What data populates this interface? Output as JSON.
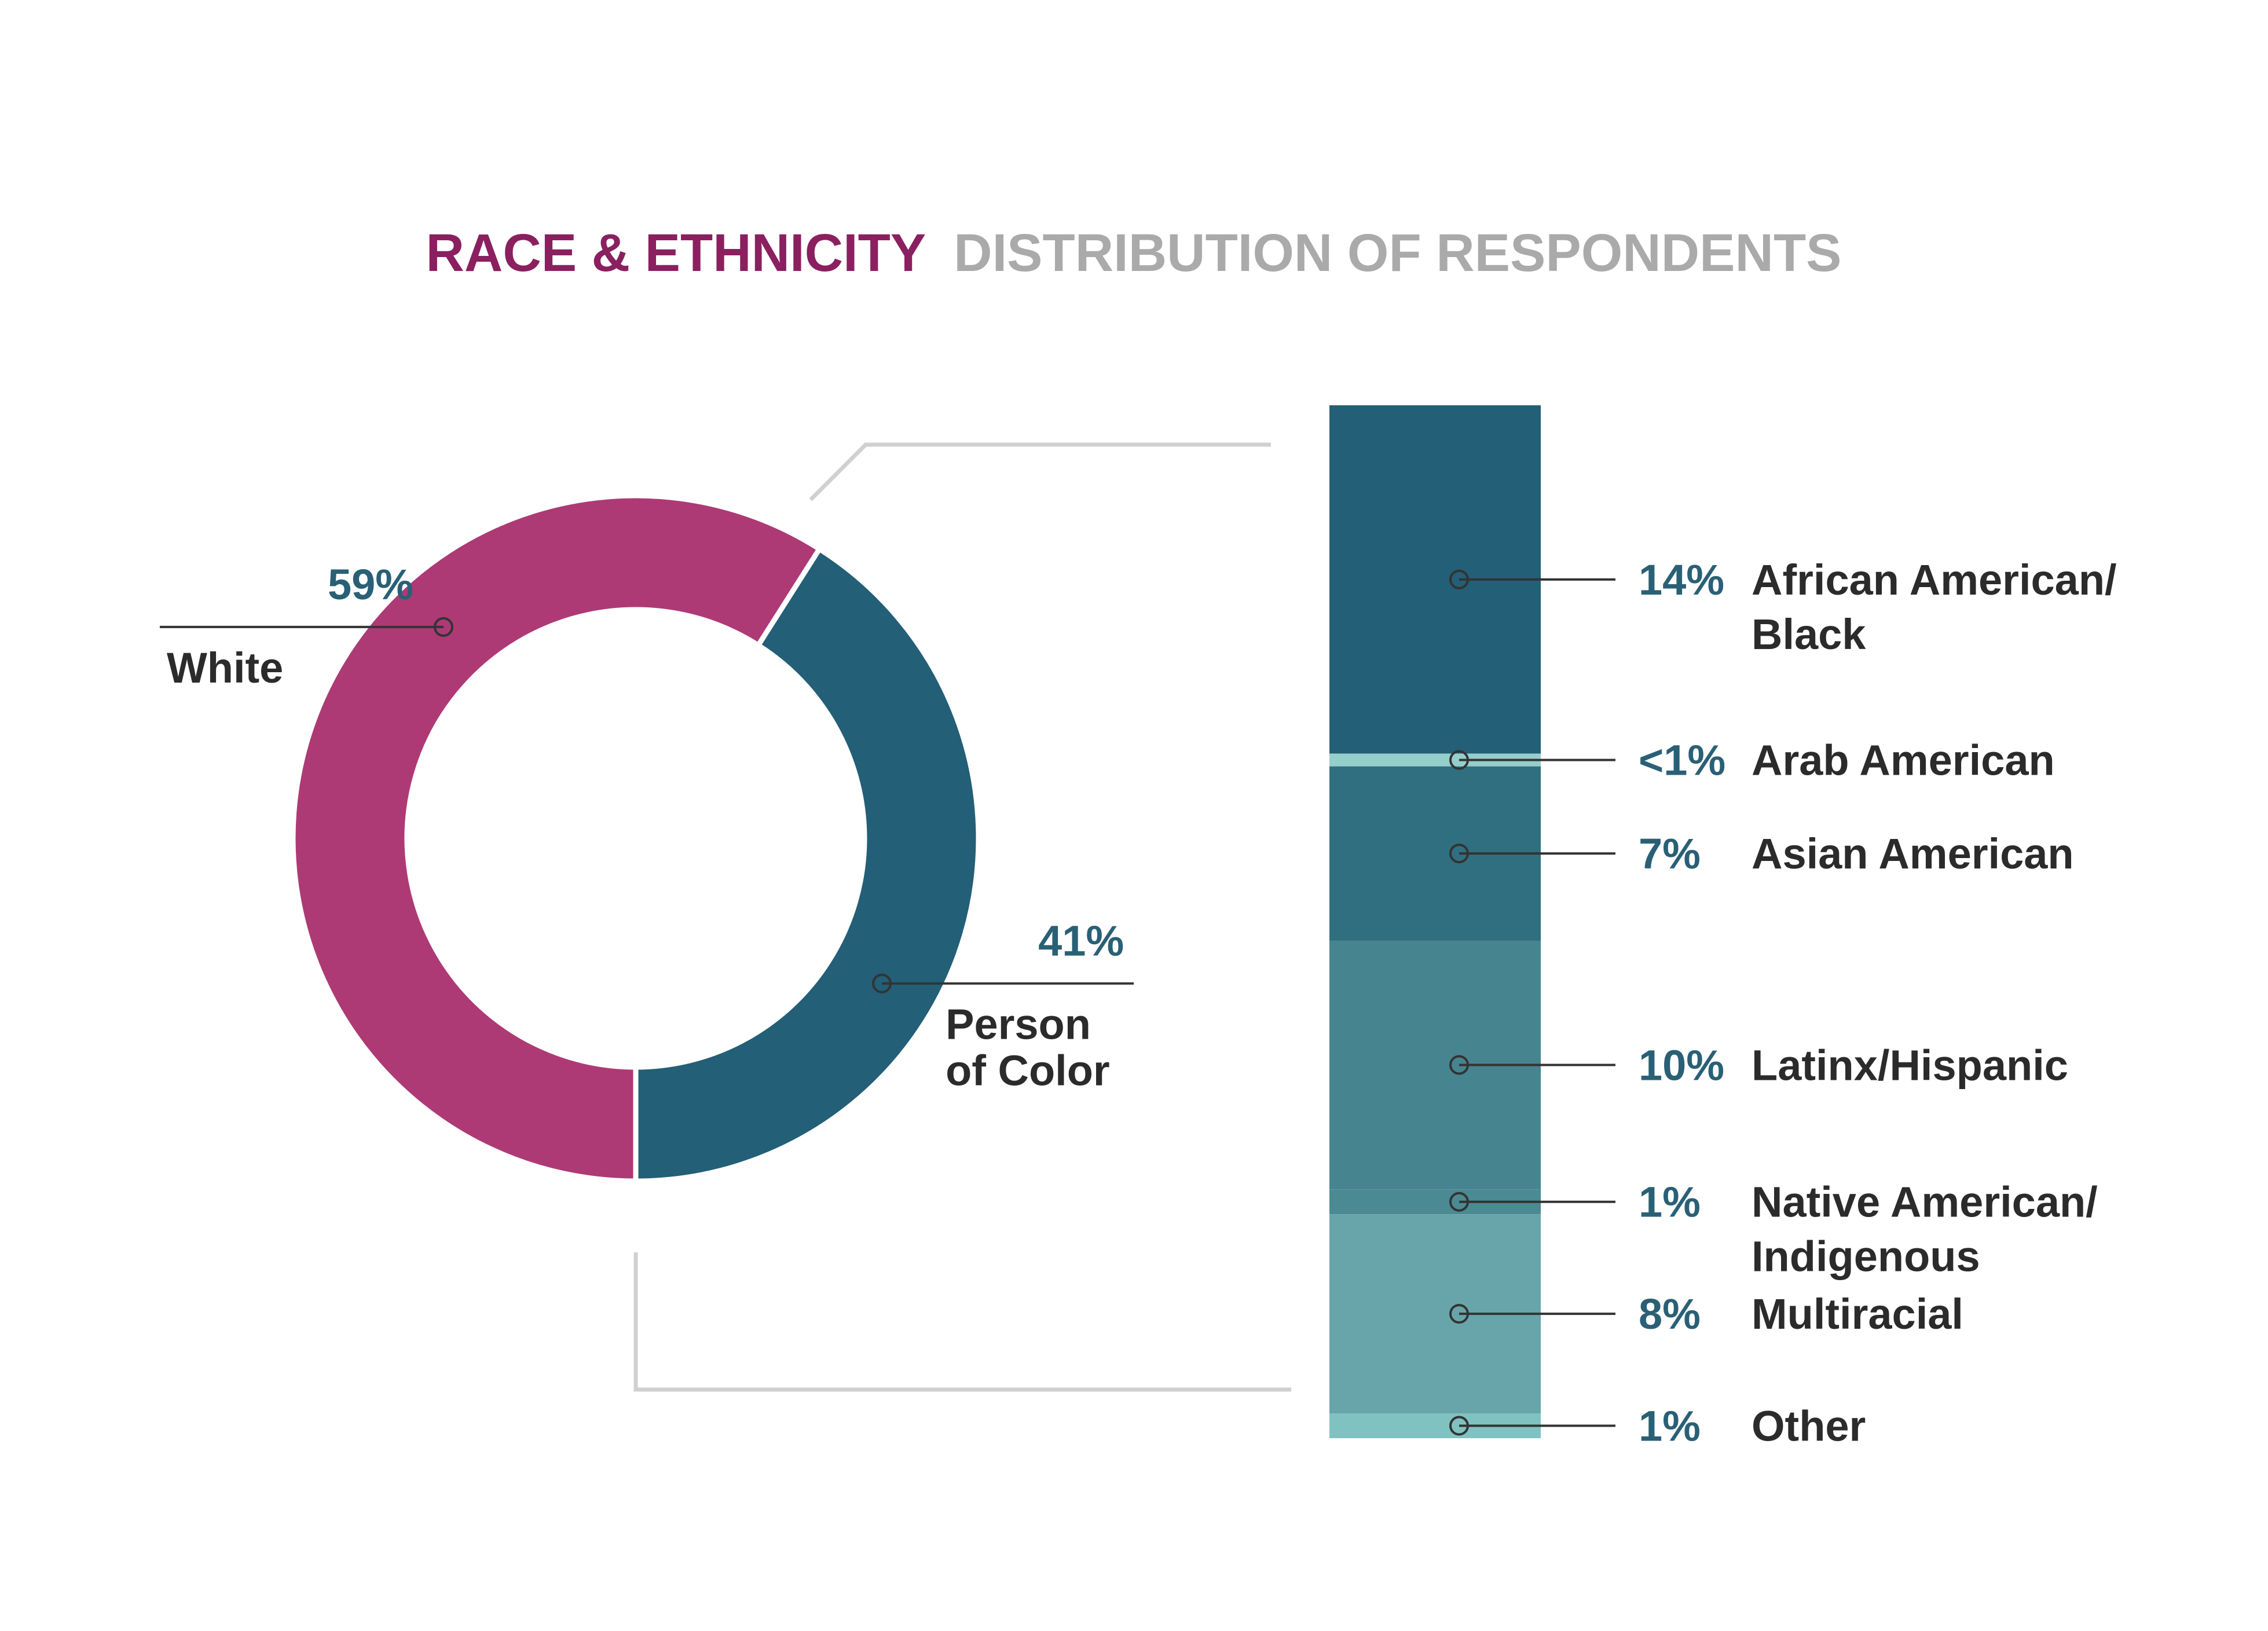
{
  "chart_data": [
    {
      "type": "pie",
      "title_primary": "RACE & ETHNICITY",
      "title_secondary": "DISTRIBUTION OF RESPONDENTS",
      "slices": [
        {
          "label": "White",
          "value": 59,
          "value_label": "59%",
          "color": "#ad3a75"
        },
        {
          "label_lines": [
            "Person",
            "of Color"
          ],
          "value": 41,
          "value_label": "41%",
          "color": "#235f76"
        }
      ]
    },
    {
      "type": "bar",
      "stacked": true,
      "categories": [
        {
          "label_lines": [
            "African American/",
            "Black"
          ],
          "value": 14,
          "value_label": "14%",
          "color": "#235f76"
        },
        {
          "label_lines": [
            "Arab American"
          ],
          "value": 0.5,
          "value_label": "<1%",
          "color": "#95cfcc"
        },
        {
          "label_lines": [
            "Asian American"
          ],
          "value": 7,
          "value_label": "7%",
          "color": "#306f80"
        },
        {
          "label_lines": [
            "Latinx/Hispanic"
          ],
          "value": 10,
          "value_label": "10%",
          "color": "#468490"
        },
        {
          "label_lines": [
            "Native American/",
            "Indigenous"
          ],
          "value": 1,
          "value_label": "1%",
          "color": "#4b8a92"
        },
        {
          "label_lines": [
            "Multiracial"
          ],
          "value": 8,
          "value_label": "8%",
          "color": "#68a5aa"
        },
        {
          "label_lines": [
            "Other"
          ],
          "value": 1,
          "value_label": "1%",
          "color": "#7fc2c1"
        }
      ]
    }
  ],
  "colors": {
    "title_primary": "#8a2060",
    "title_secondary": "#aaaaaa",
    "percent_text": "#2a6076",
    "label_text": "#2b2b2b",
    "connector": "#d0d0d0",
    "leader": "#333333"
  }
}
